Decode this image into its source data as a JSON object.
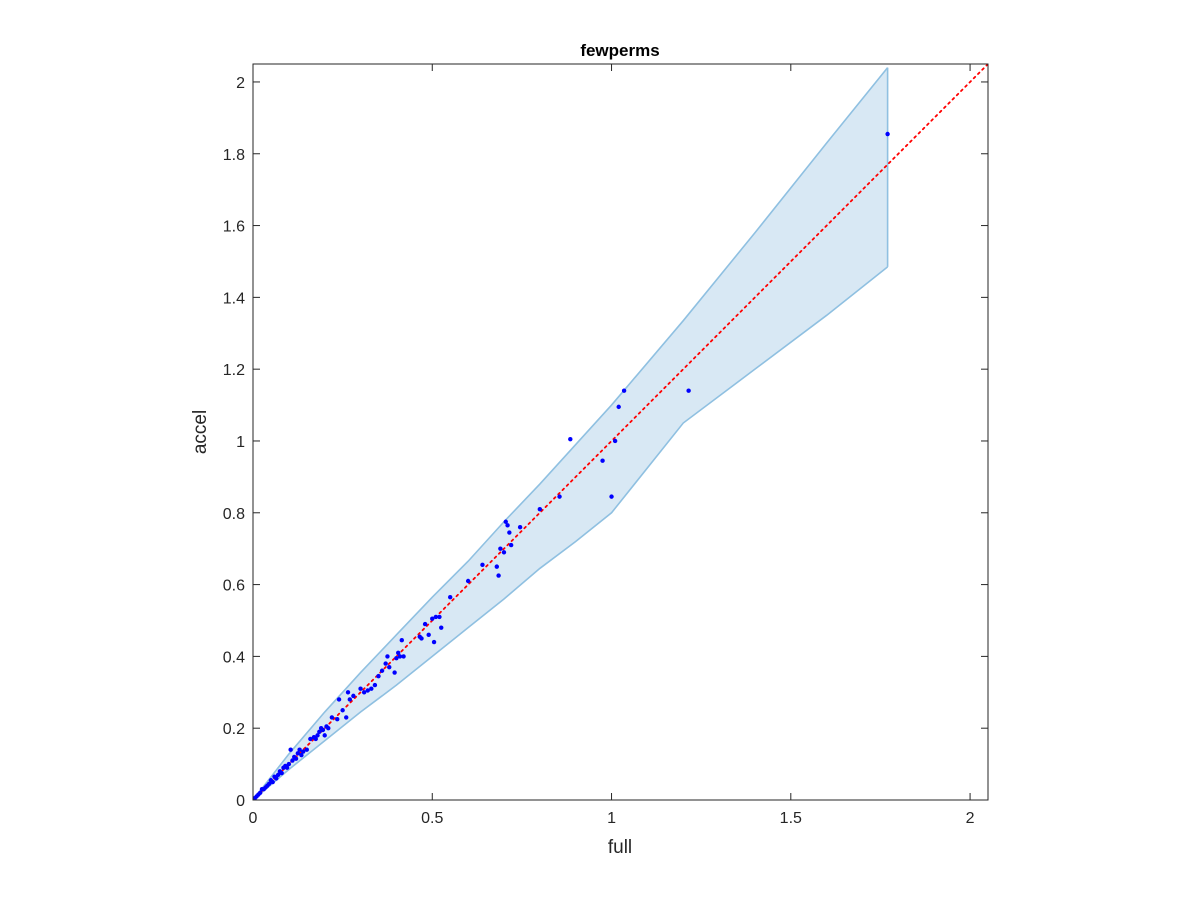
{
  "chart_data": {
    "type": "scatter",
    "title": "fewperms",
    "xlabel": "full",
    "ylabel": "accel",
    "xlim": [
      0,
      2.05
    ],
    "ylim": [
      0,
      2.05
    ],
    "xticks": [
      0,
      0.5,
      1,
      1.5,
      2
    ],
    "xtick_labels": [
      "0",
      "0.5",
      "1",
      "1.5",
      "2"
    ],
    "yticks": [
      0,
      0.2,
      0.4,
      0.6,
      0.8,
      1,
      1.2,
      1.4,
      1.6,
      1.8,
      2
    ],
    "ytick_labels": [
      "0",
      "0.2",
      "0.4",
      "0.6",
      "0.8",
      "1",
      "1.2",
      "1.4",
      "1.6",
      "1.8",
      "2"
    ],
    "grid": false,
    "reference_line": {
      "x": [
        0,
        2.05
      ],
      "y": [
        0,
        2.05
      ],
      "color": "#ff0000",
      "style": "dotted"
    },
    "band": {
      "x": [
        0,
        0.1,
        0.2,
        0.3,
        0.4,
        0.5,
        0.6,
        0.7,
        0.8,
        0.9,
        1.0,
        1.2,
        1.4,
        1.6,
        1.77
      ],
      "upper": [
        0,
        0.128,
        0.245,
        0.355,
        0.46,
        0.565,
        0.665,
        0.775,
        0.88,
        0.99,
        1.1,
        1.335,
        1.58,
        1.83,
        2.04
      ],
      "lower": [
        0,
        0.085,
        0.165,
        0.245,
        0.32,
        0.4,
        0.48,
        0.56,
        0.645,
        0.72,
        0.8,
        1.05,
        1.2,
        1.35,
        1.485
      ],
      "fill": "#d8e8f4",
      "edge": "#8fc0e1"
    },
    "points_color": "#0000ff",
    "points": [
      [
        0.005,
        0.005
      ],
      [
        0.01,
        0.01
      ],
      [
        0.015,
        0.015
      ],
      [
        0.02,
        0.02
      ],
      [
        0.025,
        0.03
      ],
      [
        0.03,
        0.03
      ],
      [
        0.035,
        0.035
      ],
      [
        0.04,
        0.04
      ],
      [
        0.045,
        0.045
      ],
      [
        0.05,
        0.055
      ],
      [
        0.055,
        0.05
      ],
      [
        0.06,
        0.065
      ],
      [
        0.065,
        0.06
      ],
      [
        0.07,
        0.07
      ],
      [
        0.075,
        0.08
      ],
      [
        0.08,
        0.075
      ],
      [
        0.085,
        0.09
      ],
      [
        0.09,
        0.095
      ],
      [
        0.095,
        0.09
      ],
      [
        0.1,
        0.1
      ],
      [
        0.105,
        0.14
      ],
      [
        0.11,
        0.11
      ],
      [
        0.115,
        0.12
      ],
      [
        0.12,
        0.115
      ],
      [
        0.125,
        0.13
      ],
      [
        0.13,
        0.14
      ],
      [
        0.135,
        0.125
      ],
      [
        0.14,
        0.135
      ],
      [
        0.15,
        0.14
      ],
      [
        0.16,
        0.17
      ],
      [
        0.17,
        0.175
      ],
      [
        0.175,
        0.17
      ],
      [
        0.18,
        0.18
      ],
      [
        0.185,
        0.19
      ],
      [
        0.19,
        0.2
      ],
      [
        0.195,
        0.195
      ],
      [
        0.2,
        0.18
      ],
      [
        0.205,
        0.205
      ],
      [
        0.21,
        0.2
      ],
      [
        0.22,
        0.23
      ],
      [
        0.235,
        0.225
      ],
      [
        0.24,
        0.28
      ],
      [
        0.25,
        0.25
      ],
      [
        0.26,
        0.23
      ],
      [
        0.265,
        0.3
      ],
      [
        0.27,
        0.28
      ],
      [
        0.28,
        0.29
      ],
      [
        0.3,
        0.31
      ],
      [
        0.31,
        0.3
      ],
      [
        0.32,
        0.305
      ],
      [
        0.33,
        0.31
      ],
      [
        0.34,
        0.32
      ],
      [
        0.35,
        0.345
      ],
      [
        0.36,
        0.36
      ],
      [
        0.37,
        0.38
      ],
      [
        0.375,
        0.4
      ],
      [
        0.38,
        0.37
      ],
      [
        0.395,
        0.355
      ],
      [
        0.4,
        0.395
      ],
      [
        0.405,
        0.41
      ],
      [
        0.41,
        0.4
      ],
      [
        0.415,
        0.445
      ],
      [
        0.42,
        0.4
      ],
      [
        0.465,
        0.455
      ],
      [
        0.47,
        0.45
      ],
      [
        0.48,
        0.49
      ],
      [
        0.49,
        0.46
      ],
      [
        0.5,
        0.505
      ],
      [
        0.505,
        0.44
      ],
      [
        0.51,
        0.51
      ],
      [
        0.52,
        0.51
      ],
      [
        0.525,
        0.48
      ],
      [
        0.55,
        0.565
      ],
      [
        0.6,
        0.61
      ],
      [
        0.64,
        0.655
      ],
      [
        0.68,
        0.65
      ],
      [
        0.685,
        0.625
      ],
      [
        0.69,
        0.7
      ],
      [
        0.7,
        0.69
      ],
      [
        0.705,
        0.775
      ],
      [
        0.71,
        0.765
      ],
      [
        0.715,
        0.745
      ],
      [
        0.72,
        0.71
      ],
      [
        0.745,
        0.76
      ],
      [
        0.8,
        0.81
      ],
      [
        0.855,
        0.845
      ],
      [
        0.885,
        1.005
      ],
      [
        0.975,
        0.945
      ],
      [
        1.0,
        0.845
      ],
      [
        1.01,
        1.0
      ],
      [
        1.02,
        1.095
      ],
      [
        1.035,
        1.14
      ],
      [
        1.215,
        1.14
      ],
      [
        1.77,
        1.855
      ]
    ]
  }
}
